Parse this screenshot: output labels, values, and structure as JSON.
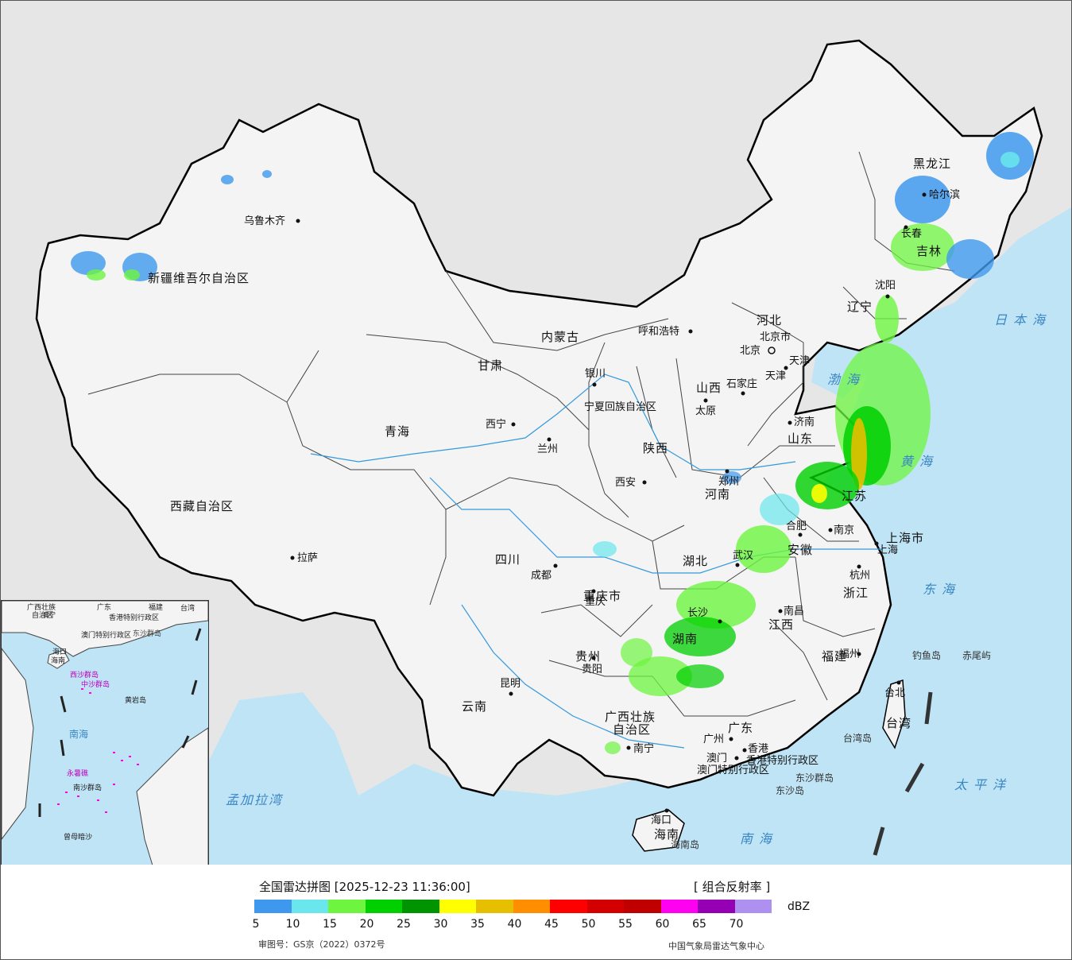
{
  "map": {
    "provinces": [
      {
        "name": "新疆维吾尔自治区"
      },
      {
        "name": "西藏自治区"
      },
      {
        "name": "青海"
      },
      {
        "name": "四川"
      },
      {
        "name": "云南"
      },
      {
        "name": "贵州"
      },
      {
        "name": "甘肃"
      },
      {
        "name": "内蒙古"
      },
      {
        "name": "黑龙江"
      },
      {
        "name": "吉林"
      },
      {
        "name": "辽宁"
      },
      {
        "name": "河北"
      },
      {
        "name": "山西"
      },
      {
        "name": "陕西"
      },
      {
        "name": "河南"
      },
      {
        "name": "山东"
      },
      {
        "name": "江苏"
      },
      {
        "name": "安徽"
      },
      {
        "name": "湖北"
      },
      {
        "name": "湖南"
      },
      {
        "name": "江西"
      },
      {
        "name": "浙江"
      },
      {
        "name": "福建"
      },
      {
        "name": "广东"
      },
      {
        "name": "广西壮族"
      },
      {
        "name": "自治区"
      },
      {
        "name": "海南"
      },
      {
        "name": "台湾"
      },
      {
        "name": "重庆市"
      },
      {
        "name": "上海市"
      },
      {
        "name": "宁夏回族自治区"
      },
      {
        "name": "北京市"
      },
      {
        "name": "天津"
      },
      {
        "name": "香港特别行政区"
      },
      {
        "name": "澳门特别行政区"
      }
    ],
    "cities": [
      {
        "name": "乌鲁木齐"
      },
      {
        "name": "拉萨"
      },
      {
        "name": "西宁"
      },
      {
        "name": "兰州"
      },
      {
        "name": "银川"
      },
      {
        "name": "呼和浩特"
      },
      {
        "name": "北京"
      },
      {
        "name": "天津"
      },
      {
        "name": "石家庄"
      },
      {
        "name": "太原"
      },
      {
        "name": "济南"
      },
      {
        "name": "西安"
      },
      {
        "name": "郑州"
      },
      {
        "name": "成都"
      },
      {
        "name": "重庆"
      },
      {
        "name": "贵阳"
      },
      {
        "name": "昆明"
      },
      {
        "name": "南宁"
      },
      {
        "name": "广州"
      },
      {
        "name": "澳门"
      },
      {
        "name": "香港"
      },
      {
        "name": "长沙"
      },
      {
        "name": "南昌"
      },
      {
        "name": "武汉"
      },
      {
        "name": "合肥"
      },
      {
        "name": "南京"
      },
      {
        "name": "上海"
      },
      {
        "name": "杭州"
      },
      {
        "name": "福州"
      },
      {
        "name": "台北"
      },
      {
        "name": "哈尔滨"
      },
      {
        "name": "长春"
      },
      {
        "name": "沈阳"
      },
      {
        "name": "海口"
      }
    ],
    "seas": [
      {
        "name": "日本海"
      },
      {
        "name": "渤海"
      },
      {
        "name": "黄海"
      },
      {
        "name": "东海"
      },
      {
        "name": "太平洋"
      },
      {
        "name": "南海"
      },
      {
        "name": "孟加拉湾"
      }
    ],
    "islands": [
      {
        "name": "钓鱼岛"
      },
      {
        "name": "赤尾屿"
      },
      {
        "name": "台湾岛"
      },
      {
        "name": "东沙群岛"
      },
      {
        "name": "东沙岛"
      },
      {
        "name": "海南岛"
      }
    ],
    "inset_labels": [
      {
        "name": "广西壮族"
      },
      {
        "name": "自治区"
      },
      {
        "name": "南宁"
      },
      {
        "name": "广东"
      },
      {
        "name": "福建"
      },
      {
        "name": "台湾"
      },
      {
        "name": "香港特别行政区"
      },
      {
        "name": "澳门特别行政区"
      },
      {
        "name": "东沙群岛"
      },
      {
        "name": "海口"
      },
      {
        "name": "海南"
      },
      {
        "name": "西沙群岛"
      },
      {
        "name": "中沙群岛"
      },
      {
        "name": "黄岩岛"
      },
      {
        "name": "南海"
      },
      {
        "name": "南沙群岛"
      },
      {
        "name": "永暑礁"
      },
      {
        "name": "曾母暗沙"
      }
    ]
  },
  "legend": {
    "title": "全国雷达拼图 [2025-12-23 11:36:00]",
    "product": "[ 组合反射率 ]",
    "unit": "dBZ",
    "colors": [
      "#3e99ee",
      "#6ae7ec",
      "#6df540",
      "#00cf00",
      "#009500",
      "#ffff00",
      "#e6c000",
      "#ff8f00",
      "#ff0000",
      "#d40000",
      "#c00000",
      "#ff00f1",
      "#9600b4",
      "#ad90f0"
    ],
    "ticks": [
      "5",
      "10",
      "15",
      "20",
      "25",
      "30",
      "35",
      "40",
      "45",
      "50",
      "55",
      "60",
      "65",
      "70"
    ],
    "approval": "审图号：GS京（2022）0372号",
    "credit": "中国气象局雷达气象中心"
  }
}
